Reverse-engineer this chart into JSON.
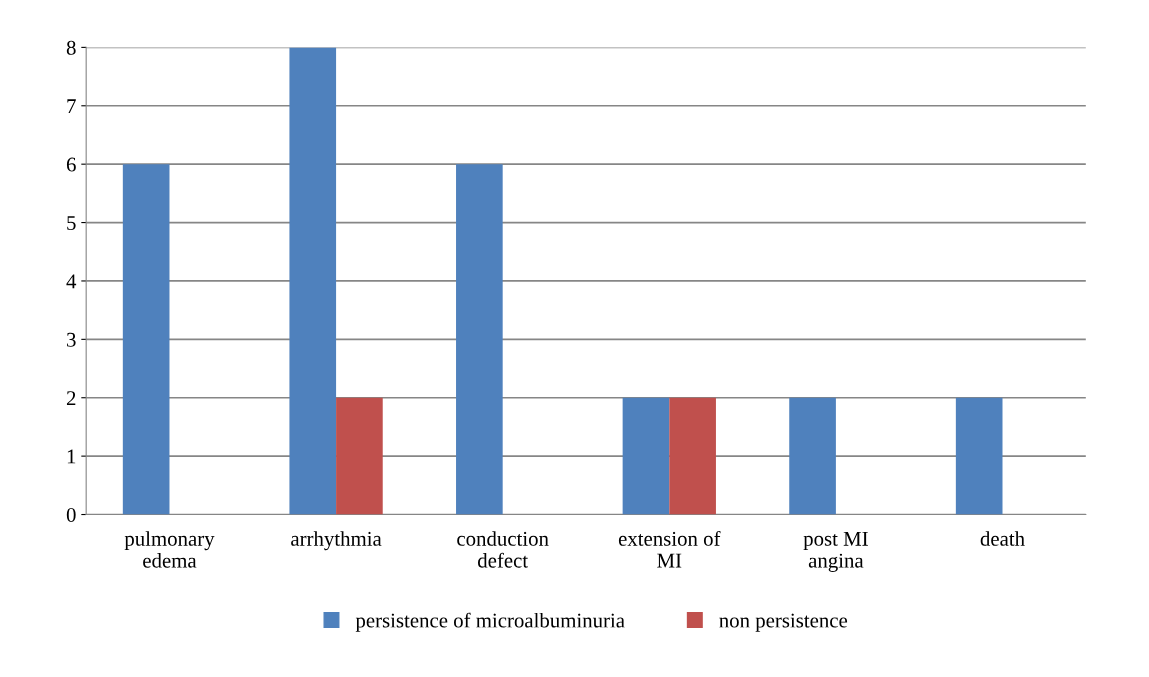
{
  "chart_data": {
    "type": "bar",
    "categories": [
      "pulmonary\nedema",
      "arrhythmia",
      "conduction\ndefect",
      "extension of\nMI",
      "post MI\nangina",
      "death"
    ],
    "series": [
      {
        "name": "persistence of microalbuminuria",
        "color": "#4f81bd",
        "values": [
          6,
          8,
          6,
          2,
          2,
          2
        ]
      },
      {
        "name": "non persistence",
        "color": "#c0504d",
        "values": [
          0,
          2,
          0,
          2,
          0,
          0
        ]
      }
    ],
    "ylim": [
      0,
      8
    ],
    "yticks": [
      0,
      1,
      2,
      3,
      4,
      5,
      6,
      7,
      8
    ],
    "grid": "y",
    "legend": "bottom"
  }
}
